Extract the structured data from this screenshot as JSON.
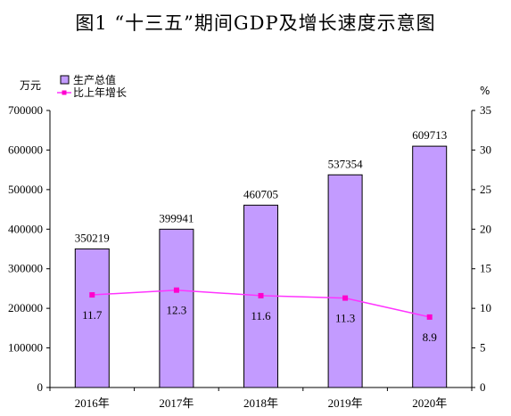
{
  "title": "图1 “十三五”期间GDP及增长速度示意图",
  "colors": {
    "bar_fill": "#C39BFF",
    "bar_stroke": "#000000",
    "line": "#FF33FF",
    "marker": "#FF00CC"
  },
  "chart_data": {
    "type": "bar",
    "title": "图1 “十三五”期间GDP及增长速度示意图",
    "categories": [
      "2016年",
      "2017年",
      "2018年",
      "2019年",
      "2020年"
    ],
    "y_left": {
      "unit": "万元",
      "range": [
        0,
        700000
      ],
      "ticks": [
        "0",
        "100000",
        "200000",
        "300000",
        "400000",
        "500000",
        "600000",
        "700000"
      ]
    },
    "y_right": {
      "unit": "%",
      "range": [
        0,
        35
      ],
      "ticks": [
        "0",
        "5",
        "10",
        "15",
        "20",
        "25",
        "30",
        "35"
      ]
    },
    "series": [
      {
        "name": "生产总值",
        "kind": "bar",
        "axis": "left",
        "values": [
          350219,
          399941,
          460705,
          537354,
          609713
        ],
        "labels": [
          "350219",
          "399941",
          "460705",
          "537354",
          "609713"
        ]
      },
      {
        "name": "比上年增长",
        "kind": "line",
        "axis": "right",
        "values": [
          11.7,
          12.3,
          11.6,
          11.3,
          8.9
        ],
        "labels": [
          "11.7",
          "12.3",
          "11.6",
          "11.3",
          "8.9"
        ]
      }
    ],
    "legend_position": "top-left",
    "grid": false
  }
}
